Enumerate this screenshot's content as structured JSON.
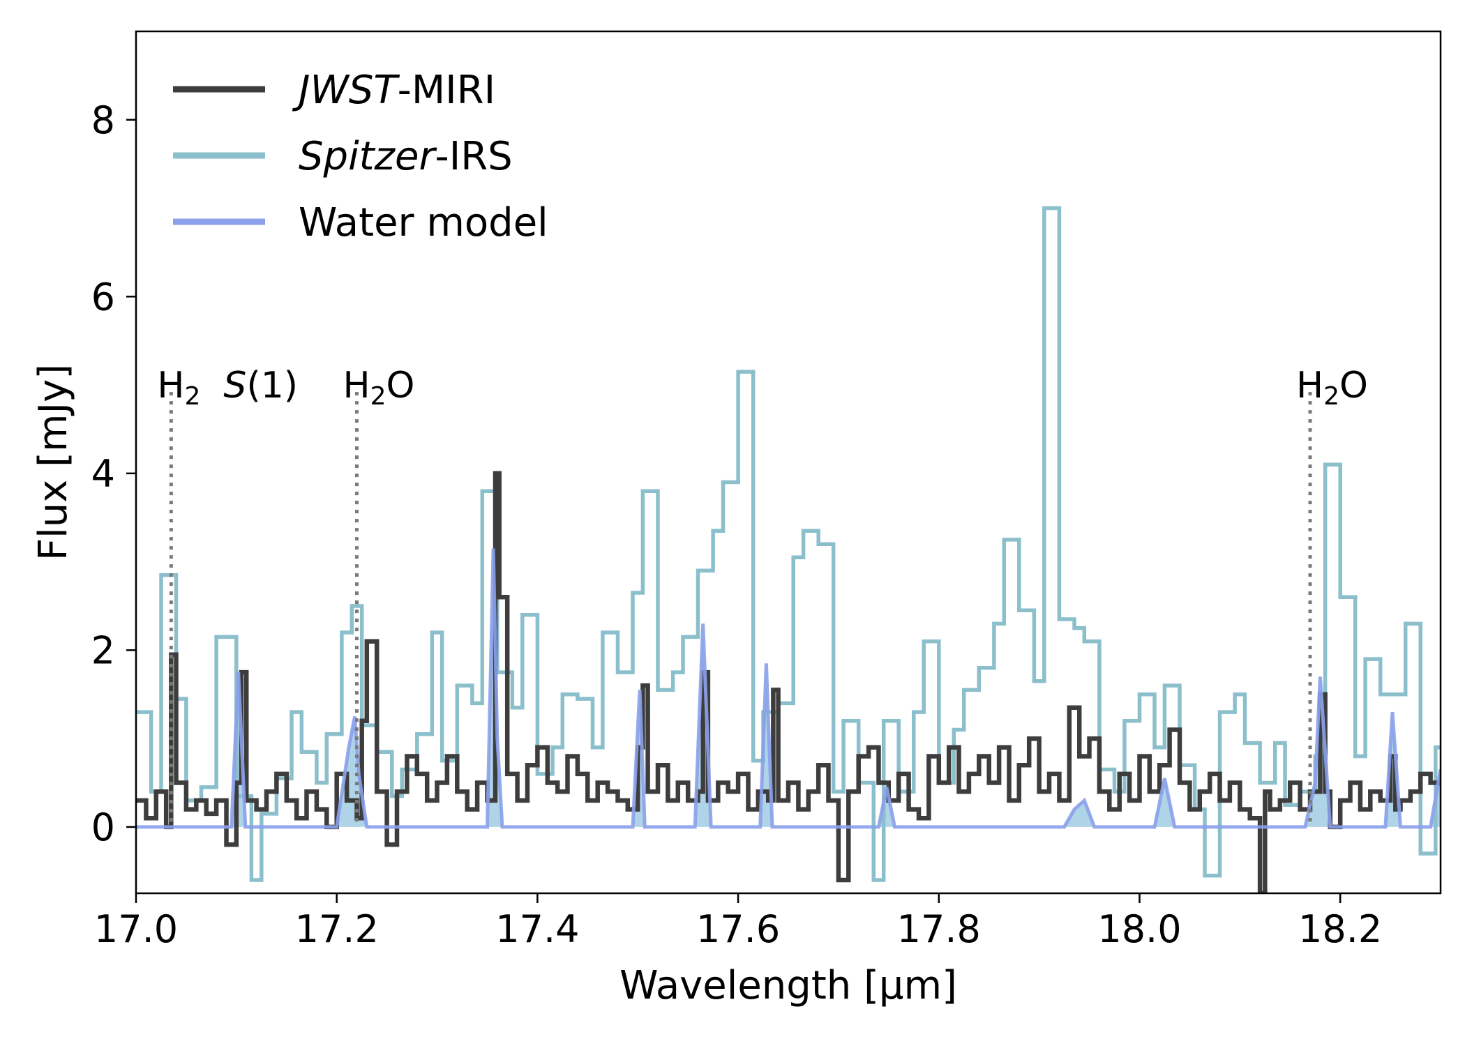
{
  "chart_data": {
    "type": "line",
    "title": "",
    "xlabel": "Wavelength [μm]",
    "ylabel": "Flux [mJy]",
    "xlim": [
      17.0,
      18.3
    ],
    "ylim": [
      -0.75,
      9.0
    ],
    "xticks": [
      17.0,
      17.2,
      17.4,
      17.6,
      17.8,
      18.0,
      18.2
    ],
    "xtick_labels": [
      "17.0",
      "17.2",
      "17.4",
      "17.6",
      "17.8",
      "18.0",
      "18.2"
    ],
    "yticks": [
      0,
      2,
      4,
      6,
      8
    ],
    "ytick_labels": [
      "0",
      "2",
      "4",
      "6",
      "8"
    ],
    "grid": false,
    "legend": {
      "placement": "top-left",
      "entries": [
        {
          "series": "jwst",
          "italic": "JWST",
          "rest": "-MIRI"
        },
        {
          "series": "spitzer",
          "italic": "Spitzer",
          "rest": "-IRS"
        },
        {
          "series": "water",
          "italic": "",
          "rest": "Water model"
        }
      ]
    },
    "annotations": [
      {
        "id": "h2s1",
        "x": 17.035,
        "y_top": 5.0,
        "base": "H",
        "sub": "2",
        "after": " ",
        "italic": "S",
        "tail": "(1)"
      },
      {
        "id": "h2o-a",
        "x": 17.22,
        "y_top": 5.0,
        "base": "H",
        "sub": "2",
        "after": "O",
        "italic": "",
        "tail": ""
      },
      {
        "id": "h2o-b",
        "x": 18.17,
        "y_top": 5.0,
        "base": "H",
        "sub": "2",
        "after": "O",
        "italic": "",
        "tail": ""
      }
    ],
    "series": [
      {
        "id": "spitzer",
        "name": "Spitzer-IRS",
        "color": "#8bbfcc",
        "step": true,
        "x": [
          17.0,
          17.015,
          17.025,
          17.04,
          17.05,
          17.065,
          17.08,
          17.09,
          17.1,
          17.115,
          17.125,
          17.14,
          17.155,
          17.165,
          17.18,
          17.19,
          17.205,
          17.215,
          17.225,
          17.24,
          17.255,
          17.265,
          17.28,
          17.295,
          17.305,
          17.32,
          17.335,
          17.345,
          17.36,
          17.375,
          17.385,
          17.4,
          17.415,
          17.425,
          17.44,
          17.455,
          17.465,
          17.48,
          17.495,
          17.505,
          17.52,
          17.535,
          17.545,
          17.56,
          17.575,
          17.585,
          17.6,
          17.615,
          17.625,
          17.64,
          17.655,
          17.665,
          17.68,
          17.695,
          17.705,
          17.72,
          17.735,
          17.745,
          17.76,
          17.775,
          17.785,
          17.8,
          17.815,
          17.825,
          17.84,
          17.855,
          17.865,
          17.88,
          17.895,
          17.905,
          17.92,
          17.935,
          17.945,
          17.96,
          17.975,
          17.985,
          18.0,
          18.015,
          18.025,
          18.04,
          18.055,
          18.065,
          18.08,
          18.095,
          18.105,
          18.12,
          18.135,
          18.145,
          18.16,
          18.175,
          18.185,
          18.2,
          18.215,
          18.225,
          18.24,
          18.255,
          18.265,
          18.28,
          18.295
        ],
        "values": [
          1.3,
          0.4,
          2.85,
          1.45,
          0.3,
          0.45,
          2.15,
          2.15,
          0.35,
          -0.6,
          0.15,
          0.55,
          1.3,
          0.85,
          0.5,
          1.05,
          2.2,
          2.5,
          1.15,
          0.85,
          0.35,
          0.65,
          1.05,
          2.2,
          0.75,
          1.6,
          1.4,
          3.8,
          1.75,
          1.35,
          2.4,
          0.6,
          0.9,
          1.5,
          1.45,
          0.9,
          2.2,
          1.75,
          2.65,
          3.8,
          1.55,
          1.75,
          2.15,
          2.9,
          3.35,
          3.9,
          5.15,
          0.75,
          1.3,
          1.4,
          3.05,
          3.35,
          3.2,
          0.4,
          1.2,
          0.5,
          -0.6,
          1.2,
          0.4,
          1.3,
          2.1,
          0.5,
          1.1,
          1.55,
          1.8,
          2.3,
          3.25,
          2.45,
          1.65,
          7.0,
          2.35,
          2.25,
          2.1,
          0.65,
          0.4,
          1.2,
          1.5,
          0.9,
          1.6,
          0.7,
          0.2,
          -0.55,
          1.3,
          1.5,
          0.95,
          0.5,
          0.95,
          0.25,
          0.4,
          0.8,
          4.1,
          2.6,
          0.8,
          1.9,
          1.5,
          1.5,
          2.3,
          -0.3,
          0.9
        ]
      },
      {
        "id": "jwst",
        "name": "JWST-MIRI",
        "color": "#3d3d3d",
        "step": true,
        "x": [
          17.0,
          17.01,
          17.02,
          17.03,
          17.035,
          17.04,
          17.05,
          17.06,
          17.07,
          17.08,
          17.09,
          17.1,
          17.105,
          17.11,
          17.12,
          17.13,
          17.14,
          17.15,
          17.16,
          17.17,
          17.18,
          17.19,
          17.2,
          17.21,
          17.22,
          17.225,
          17.23,
          17.24,
          17.25,
          17.26,
          17.27,
          17.28,
          17.29,
          17.3,
          17.31,
          17.32,
          17.33,
          17.34,
          17.35,
          17.358,
          17.362,
          17.37,
          17.38,
          17.39,
          17.4,
          17.41,
          17.42,
          17.43,
          17.44,
          17.45,
          17.46,
          17.47,
          17.48,
          17.49,
          17.5,
          17.505,
          17.51,
          17.52,
          17.53,
          17.54,
          17.55,
          17.56,
          17.565,
          17.57,
          17.58,
          17.59,
          17.6,
          17.61,
          17.62,
          17.63,
          17.635,
          17.64,
          17.65,
          17.66,
          17.67,
          17.68,
          17.69,
          17.7,
          17.71,
          17.72,
          17.73,
          17.74,
          17.75,
          17.76,
          17.77,
          17.78,
          17.79,
          17.8,
          17.81,
          17.82,
          17.83,
          17.84,
          17.85,
          17.86,
          17.87,
          17.88,
          17.89,
          17.9,
          17.91,
          17.92,
          17.93,
          17.94,
          17.95,
          17.96,
          17.97,
          17.98,
          17.99,
          18.0,
          18.01,
          18.02,
          18.03,
          18.04,
          18.05,
          18.06,
          18.07,
          18.08,
          18.09,
          18.1,
          18.11,
          18.12,
          18.125,
          18.13,
          18.14,
          18.15,
          18.16,
          18.17,
          18.18,
          18.185,
          18.19,
          18.2,
          18.21,
          18.22,
          18.23,
          18.24,
          18.25,
          18.255,
          18.26,
          18.27,
          18.28,
          18.29
        ],
        "values": [
          0.3,
          0.1,
          0.4,
          0.0,
          1.95,
          0.5,
          0.2,
          0.3,
          0.15,
          0.3,
          -0.2,
          0.5,
          1.75,
          0.3,
          0.2,
          0.4,
          0.6,
          0.3,
          0.1,
          0.4,
          0.2,
          0.0,
          0.6,
          0.3,
          0.1,
          1.2,
          2.1,
          0.4,
          -0.2,
          0.4,
          0.8,
          0.6,
          0.3,
          0.5,
          0.8,
          0.4,
          0.2,
          0.5,
          0.3,
          4.0,
          2.6,
          0.6,
          0.3,
          0.7,
          0.9,
          0.5,
          0.4,
          0.8,
          0.6,
          0.3,
          0.5,
          0.4,
          0.3,
          0.2,
          0.9,
          1.6,
          0.4,
          0.7,
          0.3,
          0.5,
          0.3,
          0.4,
          1.75,
          0.3,
          0.5,
          0.4,
          0.6,
          0.2,
          0.4,
          0.3,
          1.55,
          0.3,
          0.5,
          0.2,
          0.4,
          0.7,
          0.3,
          -0.6,
          0.4,
          0.8,
          0.9,
          0.5,
          0.3,
          0.6,
          0.2,
          0.1,
          0.8,
          0.5,
          0.9,
          0.4,
          0.6,
          0.8,
          0.5,
          0.9,
          0.3,
          0.7,
          1.0,
          0.4,
          0.6,
          0.3,
          1.35,
          0.8,
          1.0,
          0.4,
          0.2,
          0.6,
          0.3,
          0.8,
          0.4,
          0.7,
          1.1,
          0.5,
          0.2,
          0.4,
          0.6,
          0.3,
          0.5,
          0.2,
          0.1,
          -0.75,
          0.4,
          0.2,
          0.3,
          0.5,
          0.2,
          0.4,
          1.5,
          0.4,
          0.0,
          0.3,
          0.5,
          0.2,
          0.4,
          0.3,
          0.8,
          0.2,
          0.3,
          0.4,
          0.6,
          0.5
        ]
      },
      {
        "id": "water",
        "name": "Water model",
        "color": "#8aa0ea",
        "fill_color": "#6fb0d3",
        "step": false,
        "x": [
          17.0,
          17.095,
          17.102,
          17.109,
          17.2,
          17.212,
          17.218,
          17.222,
          17.23,
          17.35,
          17.356,
          17.36,
          17.365,
          17.495,
          17.502,
          17.507,
          17.557,
          17.565,
          17.573,
          17.622,
          17.628,
          17.634,
          17.74,
          17.748,
          17.756,
          17.925,
          17.935,
          17.945,
          17.955,
          18.015,
          18.025,
          18.035,
          18.165,
          18.175,
          18.18,
          18.19,
          18.245,
          18.252,
          18.26,
          18.29,
          18.3
        ],
        "values": [
          0.0,
          0.0,
          1.75,
          0.0,
          0.0,
          0.9,
          1.25,
          0.6,
          0.0,
          0.0,
          3.15,
          1.0,
          0.0,
          0.0,
          1.55,
          0.0,
          0.0,
          2.3,
          0.0,
          0.0,
          1.85,
          0.0,
          0.0,
          0.45,
          0.0,
          0.0,
          0.2,
          0.3,
          0.0,
          0.0,
          0.55,
          0.0,
          0.0,
          0.5,
          1.7,
          0.0,
          0.0,
          1.3,
          0.0,
          0.0,
          0.65
        ]
      }
    ]
  }
}
